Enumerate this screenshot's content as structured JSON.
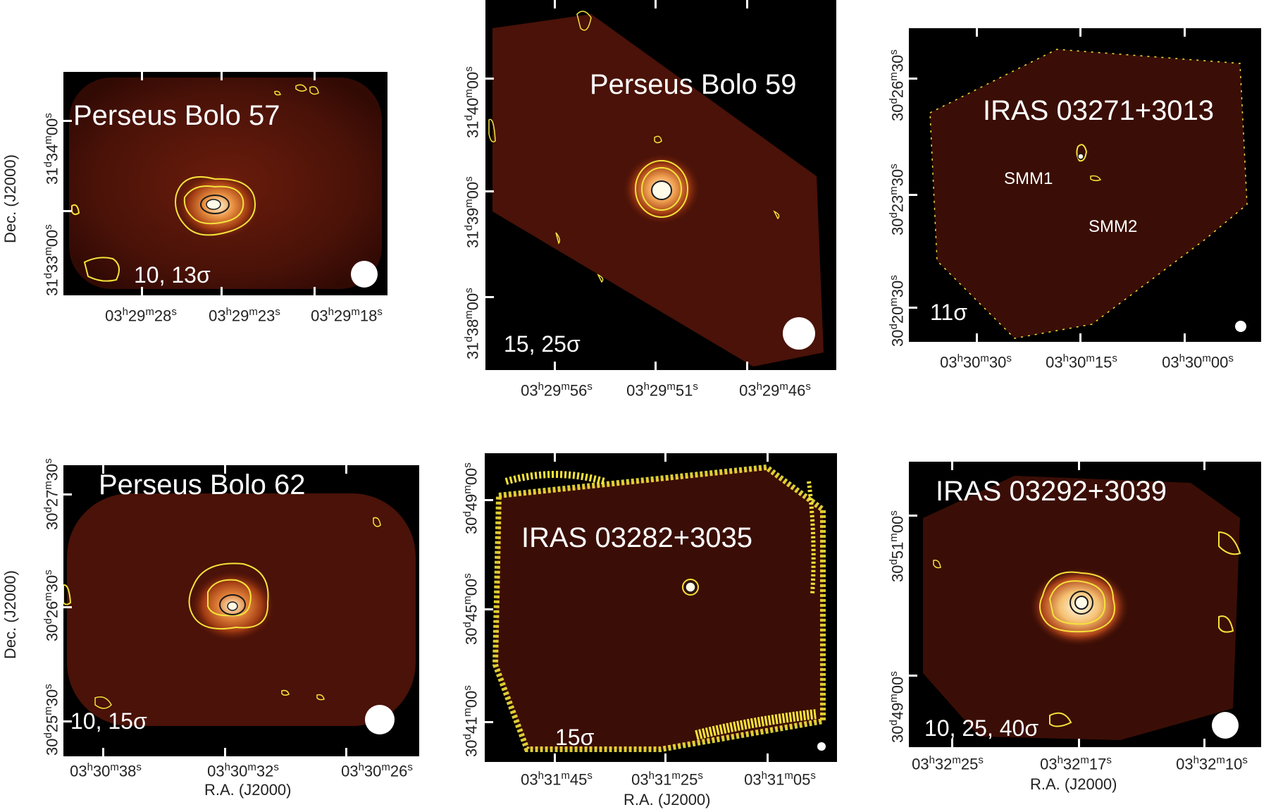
{
  "axis_labels": {
    "ra": "R.A. (J2000)",
    "dec": "Dec. (J2000)"
  },
  "panels": [
    {
      "title": "Perseus Bolo 57",
      "levels": "10, 13σ",
      "ra_ticks": [
        [
          "03",
          "h",
          "29",
          "m",
          "28",
          "s"
        ],
        [
          "03",
          "h",
          "29",
          "m",
          "23",
          "s"
        ],
        [
          "03",
          "h",
          "29",
          "m",
          "18",
          "s"
        ]
      ],
      "dec_ticks": [
        [
          "31",
          "d",
          "33",
          "m",
          "00",
          "s"
        ],
        [
          "31",
          "d",
          "34",
          "m",
          "00",
          "s"
        ]
      ]
    },
    {
      "title": "Perseus Bolo 59",
      "levels": "15, 25σ",
      "ra_ticks": [
        [
          "03",
          "h",
          "29",
          "m",
          "56",
          "s"
        ],
        [
          "03",
          "h",
          "29",
          "m",
          "51",
          "s"
        ],
        [
          "03",
          "h",
          "29",
          "m",
          "46",
          "s"
        ]
      ],
      "dec_ticks": [
        [
          "31",
          "d",
          "38",
          "m",
          "00",
          "s"
        ],
        [
          "31",
          "d",
          "39",
          "m",
          "00",
          "s"
        ],
        [
          "31",
          "d",
          "40",
          "m",
          "00",
          "s"
        ]
      ]
    },
    {
      "title": "IRAS 03271+3013",
      "levels": "11σ",
      "sources": [
        "SMM1",
        "SMM2"
      ],
      "ra_ticks": [
        [
          "03",
          "h",
          "30",
          "m",
          "30",
          "s"
        ],
        [
          "03",
          "h",
          "30",
          "m",
          "15",
          "s"
        ],
        [
          "03",
          "h",
          "30",
          "m",
          "00",
          "s"
        ]
      ],
      "dec_ticks": [
        [
          "30",
          "d",
          "20",
          "m",
          "30",
          "s"
        ],
        [
          "30",
          "d",
          "23",
          "m",
          "30",
          "s"
        ],
        [
          "30",
          "d",
          "26",
          "m",
          "30",
          "s"
        ]
      ]
    },
    {
      "title": "Perseus Bolo 62",
      "levels": "10, 15σ",
      "ra_ticks": [
        [
          "03",
          "h",
          "30",
          "m",
          "38",
          "s"
        ],
        [
          "03",
          "h",
          "30",
          "m",
          "32",
          "s"
        ],
        [
          "03",
          "h",
          "30",
          "m",
          "26",
          "s"
        ]
      ],
      "dec_ticks": [
        [
          "30",
          "d",
          "25",
          "m",
          "30",
          "s"
        ],
        [
          "30",
          "d",
          "26",
          "m",
          "30",
          "s"
        ],
        [
          "30",
          "d",
          "27",
          "m",
          "30",
          "s"
        ]
      ]
    },
    {
      "title": "IRAS 03282+3035",
      "levels": "15σ",
      "ra_ticks": [
        [
          "03",
          "h",
          "31",
          "m",
          "45",
          "s"
        ],
        [
          "03",
          "h",
          "31",
          "m",
          "25",
          "s"
        ],
        [
          "03",
          "h",
          "31",
          "m",
          "05",
          "s"
        ]
      ],
      "dec_ticks": [
        [
          "30",
          "d",
          "41",
          "m",
          "00",
          "s"
        ],
        [
          "30",
          "d",
          "45",
          "m",
          "00",
          "s"
        ],
        [
          "30",
          "d",
          "49",
          "m",
          "00",
          "s"
        ]
      ]
    },
    {
      "title": "IRAS 03292+3039",
      "levels": "10, 25, 40σ",
      "ra_ticks": [
        [
          "03",
          "h",
          "32",
          "m",
          "25",
          "s"
        ],
        [
          "03",
          "h",
          "32",
          "m",
          "17",
          "s"
        ],
        [
          "03",
          "h",
          "32",
          "m",
          "10",
          "s"
        ]
      ],
      "dec_ticks": [
        [
          "30",
          "d",
          "49",
          "m",
          "00",
          "s"
        ],
        [
          "30",
          "d",
          "51",
          "m",
          "00",
          "s"
        ]
      ]
    }
  ],
  "colors": {
    "contour": "#f5e23a",
    "inner_contour": "#1a1a1a",
    "background": "#000000",
    "emission": "#5a1608"
  }
}
